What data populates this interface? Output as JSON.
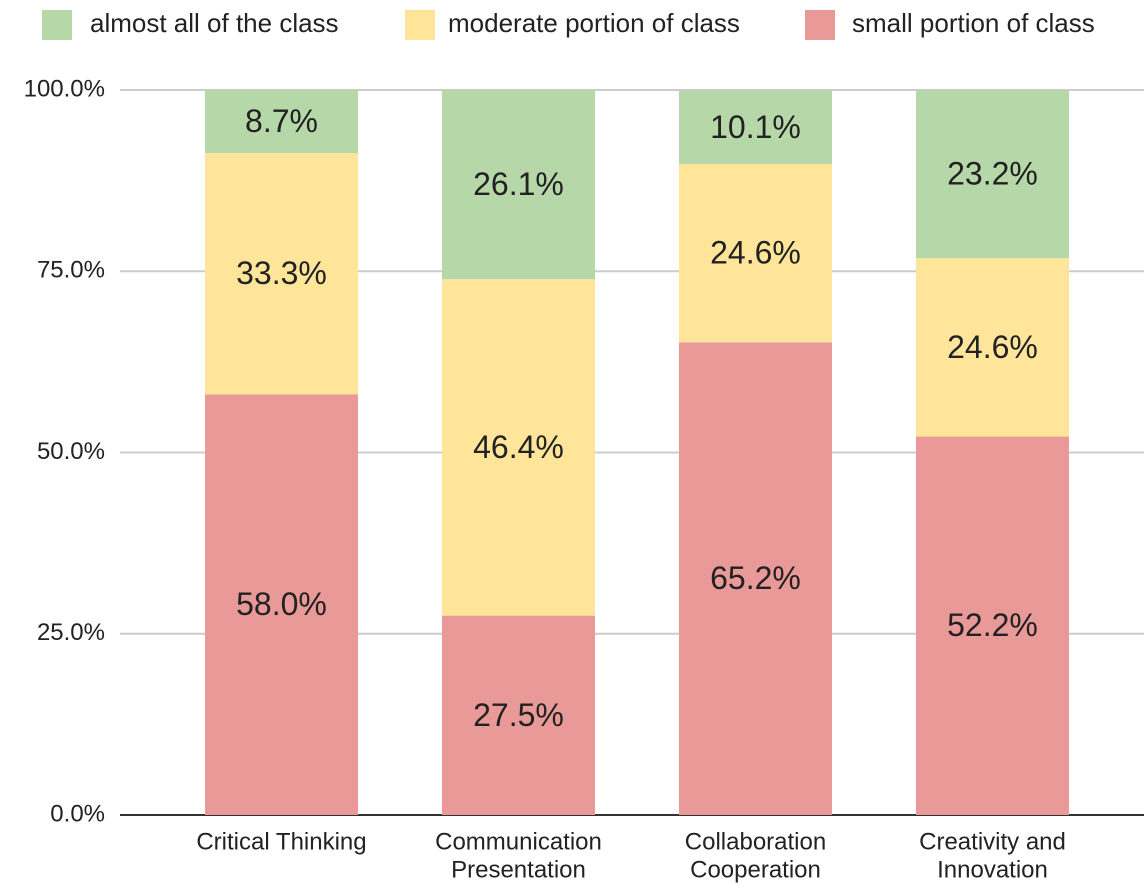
{
  "chart_data": {
    "type": "stacked_bar",
    "categories": [
      [
        "Critical Thinking"
      ],
      [
        "Communication",
        "Presentation"
      ],
      [
        "Collaboration",
        "Cooperation"
      ],
      [
        "Creativity and",
        "Innovation"
      ]
    ],
    "series": [
      {
        "name": "almost all of the class",
        "color": "#b6d7a8",
        "values": [
          8.7,
          26.1,
          10.1,
          23.2
        ],
        "value_labels": [
          "8.7%",
          "26.1%",
          "10.1%",
          "23.2%"
        ]
      },
      {
        "name": "moderate portion of class",
        "color": "#ffe599",
        "values": [
          33.3,
          46.4,
          24.6,
          24.6
        ],
        "value_labels": [
          "33.3%",
          "46.4%",
          "24.6%",
          "24.6%"
        ]
      },
      {
        "name": "small portion of class",
        "color": "#ea9999",
        "values": [
          58.0,
          27.5,
          65.2,
          52.2
        ],
        "value_labels": [
          "58.0%",
          "27.5%",
          "65.2%",
          "52.2%"
        ]
      }
    ],
    "ylim": [
      0,
      100
    ],
    "yticks": [
      {
        "value": 0,
        "label": "0.0%"
      },
      {
        "value": 25,
        "label": "25.0%"
      },
      {
        "value": 50,
        "label": "50.0%"
      },
      {
        "value": 75,
        "label": "75.0%"
      },
      {
        "value": 100,
        "label": "100.0%"
      }
    ],
    "grid": true,
    "legend": "top"
  }
}
